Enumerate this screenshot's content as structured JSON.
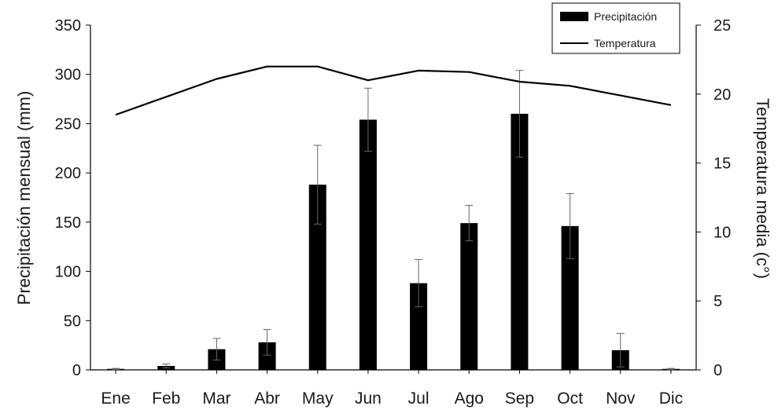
{
  "chart_data": {
    "type": "bar",
    "categories": [
      "Ene",
      "Feb",
      "Mar",
      "Abr",
      "May",
      "Jun",
      "Jul",
      "Ago",
      "Sep",
      "Oct",
      "Nov",
      "Dic"
    ],
    "series": [
      {
        "name": "Precipitación",
        "type": "bar",
        "axis": "left",
        "color": "#000000",
        "values": [
          1,
          4,
          21,
          28,
          188,
          254,
          88,
          149,
          260,
          146,
          20,
          1
        ],
        "error": [
          0.5,
          2,
          11,
          13,
          40,
          32,
          24,
          18,
          44,
          33,
          17,
          0.5
        ]
      },
      {
        "name": "Temperatura",
        "type": "line",
        "axis": "right",
        "color": "#000000",
        "values": [
          18.5,
          19.8,
          21.1,
          22.0,
          22.0,
          21.0,
          21.7,
          21.6,
          20.9,
          20.6,
          19.9,
          19.2
        ]
      }
    ],
    "ylabel": "Precipitación mensual (mm)",
    "y2label": "Temperatura media (c°)",
    "xlabel": "",
    "ylim": [
      0,
      350
    ],
    "y2lim": [
      0,
      25
    ],
    "yticks": [
      "0",
      "50",
      "100",
      "150",
      "200",
      "250",
      "300",
      "350"
    ],
    "y2ticks": [
      "0",
      "5",
      "10",
      "15",
      "20",
      "25"
    ],
    "grid": false,
    "legend_position": "top-right"
  }
}
